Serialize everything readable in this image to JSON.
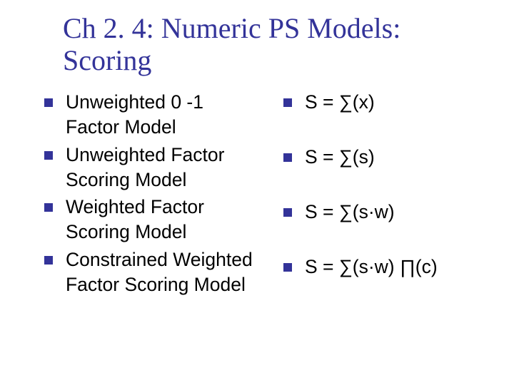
{
  "title": "Ch 2. 4: Numeric PS Models: Scoring",
  "title_color": "#333399",
  "title_fontsize": 40,
  "bullet_color": "#333399",
  "bullet_size": 12,
  "body_fontsize": 26.5,
  "body_color": "#000000",
  "background_color": "#ffffff",
  "left_items": [
    "Unweighted 0 -1 Factor Model",
    "Unweighted Factor Scoring Model",
    "Weighted Factor Scoring Model",
    "Constrained Weighted Factor Scoring Model"
  ],
  "right_items": [
    "S = ∑(x)",
    "S = ∑(s)",
    "S = ∑(s·w)",
    "S = ∑(s·w) ∏(c)"
  ]
}
